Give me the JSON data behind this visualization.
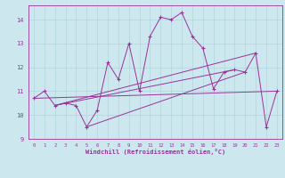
{
  "xlabel": "Windchill (Refroidissement éolien,°C)",
  "bg_color": "#cce8ee",
  "line_color": "#993399",
  "xlim": [
    -0.5,
    23.5
  ],
  "ylim": [
    9.0,
    14.6
  ],
  "yticks": [
    9,
    10,
    11,
    12,
    13,
    14
  ],
  "xticks": [
    0,
    1,
    2,
    3,
    4,
    5,
    6,
    7,
    8,
    9,
    10,
    11,
    12,
    13,
    14,
    15,
    16,
    17,
    18,
    19,
    20,
    21,
    22,
    23
  ],
  "series": [
    [
      0,
      10.7
    ],
    [
      1,
      11.0
    ],
    [
      2,
      10.4
    ],
    [
      3,
      10.5
    ],
    [
      4,
      10.4
    ],
    [
      5,
      9.5
    ],
    [
      6,
      10.2
    ],
    [
      7,
      12.2
    ],
    [
      8,
      11.5
    ],
    [
      9,
      13.0
    ],
    [
      10,
      11.0
    ],
    [
      11,
      13.3
    ],
    [
      12,
      14.1
    ],
    [
      13,
      14.0
    ],
    [
      14,
      14.3
    ],
    [
      15,
      13.3
    ],
    [
      16,
      12.8
    ],
    [
      17,
      11.1
    ],
    [
      18,
      11.8
    ],
    [
      19,
      11.9
    ],
    [
      20,
      11.8
    ],
    [
      21,
      12.6
    ],
    [
      22,
      9.5
    ],
    [
      23,
      11.0
    ]
  ],
  "line2": [
    [
      0,
      10.7
    ],
    [
      23,
      11.0
    ]
  ],
  "line3": [
    [
      2,
      10.4
    ],
    [
      21,
      12.6
    ]
  ],
  "line4": [
    [
      2,
      10.4
    ],
    [
      19,
      11.9
    ]
  ],
  "line5": [
    [
      5,
      9.5
    ],
    [
      20,
      11.8
    ]
  ]
}
